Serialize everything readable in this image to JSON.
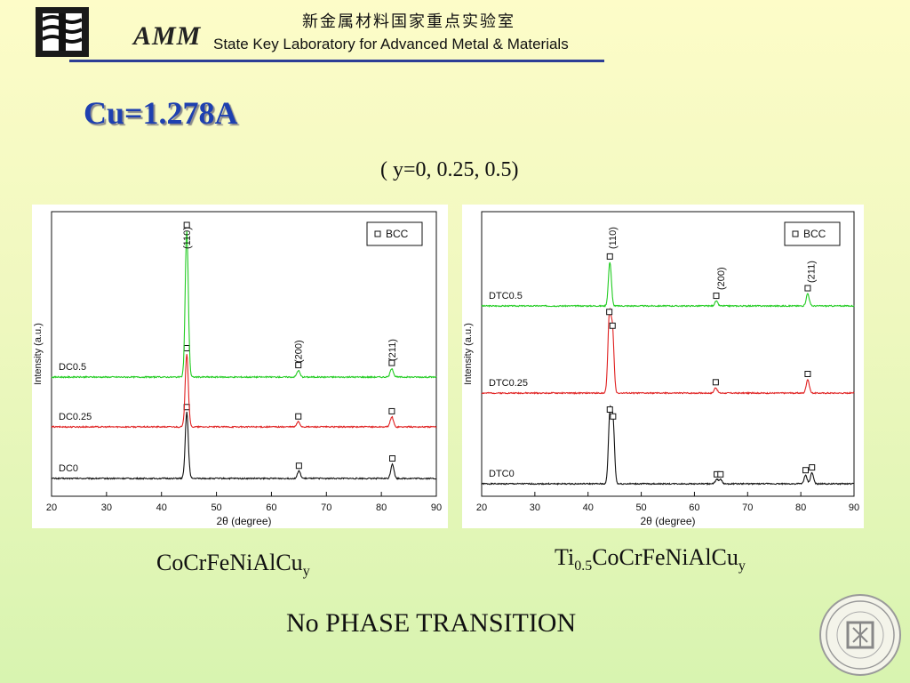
{
  "header": {
    "lab_name_cn": "新金属材料国家重点实验室",
    "lab_name_en": "State Key Laboratory for Advanced Metal & Materials",
    "logo_text": "AMM"
  },
  "slide": {
    "title": "Cu=1.278A",
    "subtitle": "( y=0, 0.25, 0.5)",
    "caption_left": {
      "main": "CoCrFeNiAlCu",
      "sub": "y"
    },
    "caption_right": {
      "pre": "Ti",
      "pre_sub": "0.5",
      "main": "CoCrFeNiAlCu",
      "sub": "y"
    },
    "conclusion": "No PHASE TRANSITION"
  },
  "chart_data": [
    {
      "type": "line",
      "xlabel": "2θ (degree)",
      "ylabel": "Intensity (a.u.)",
      "xlim": [
        20,
        90
      ],
      "xticks": [
        20,
        30,
        40,
        50,
        60,
        70,
        80,
        90
      ],
      "legend": {
        "label": "BCC",
        "position": "top-right"
      },
      "series": [
        {
          "name": "DC0",
          "color": "#111111",
          "offset": 0.0,
          "peaks": [
            [
              44.6,
              4.5
            ],
            [
              65.0,
              0.5
            ],
            [
              82.0,
              1.0
            ]
          ]
        },
        {
          "name": "DC0.25",
          "color": "#e02020",
          "offset": 2.0,
          "peaks": [
            [
              44.6,
              5.0
            ],
            [
              64.9,
              0.35
            ],
            [
              81.9,
              0.7
            ]
          ]
        },
        {
          "name": "DC0.5",
          "color": "#22cc22",
          "offset": 4.0,
          "peaks": [
            [
              44.6,
              10.0
            ],
            [
              64.9,
              0.45
            ],
            [
              81.9,
              0.6
            ]
          ]
        }
      ],
      "annotations": [
        "(110)",
        "(200)",
        "(211)"
      ]
    },
    {
      "type": "line",
      "xlabel": "2θ (degree)",
      "ylabel": "Intensity (a.u.)",
      "xlim": [
        20,
        90
      ],
      "xticks": [
        20,
        30,
        40,
        50,
        60,
        70,
        80,
        90
      ],
      "legend": {
        "label": "BCC",
        "position": "top-right"
      },
      "series": [
        {
          "name": "DTC0",
          "color": "#111111",
          "offset": 0.0,
          "peaks": [
            [
              44.1,
              5.0
            ],
            [
              44.7,
              4.5
            ],
            [
              64.2,
              0.3
            ],
            [
              64.9,
              0.3
            ],
            [
              80.9,
              0.6
            ],
            [
              82.1,
              0.8
            ]
          ]
        },
        {
          "name": "DTC0.25",
          "color": "#e02020",
          "offset": 2.9,
          "peaks": [
            [
              44.0,
              5.5
            ],
            [
              44.6,
              4.5
            ],
            [
              64.0,
              0.4
            ],
            [
              81.3,
              1.0
            ]
          ]
        },
        {
          "name": "DTC0.5",
          "color": "#22cc22",
          "offset": 6.0,
          "peaks": [
            [
              44.1,
              3.2
            ],
            [
              64.1,
              0.35
            ],
            [
              81.3,
              0.9
            ]
          ]
        }
      ],
      "annotations": [
        "(110)",
        "(200)",
        "(211)"
      ]
    }
  ]
}
